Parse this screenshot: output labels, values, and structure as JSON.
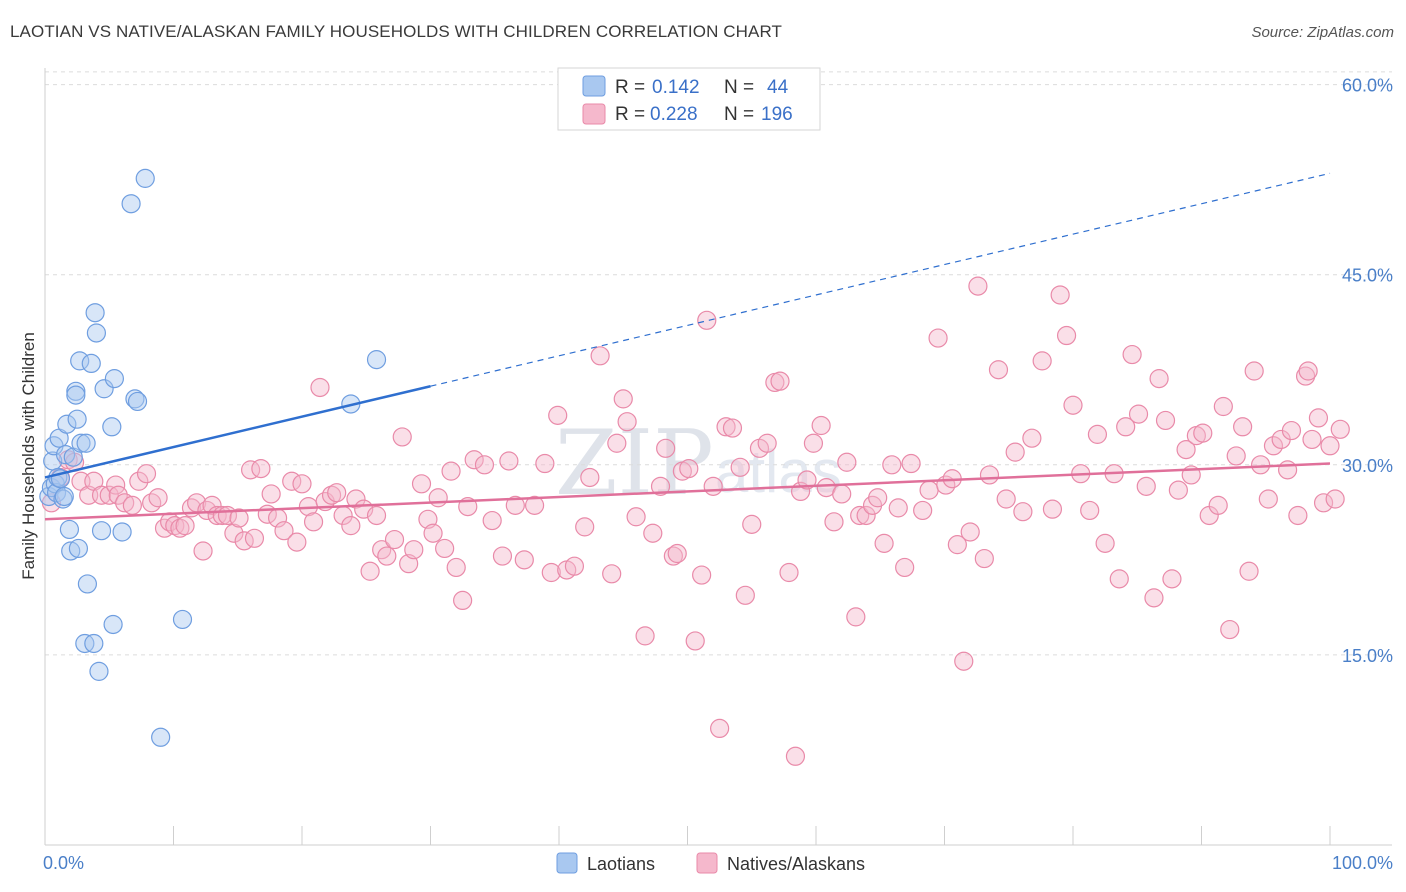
{
  "title": "LAOTIAN VS NATIVE/ALASKAN FAMILY HOUSEHOLDS WITH CHILDREN CORRELATION CHART",
  "source": "Source: ZipAtlas.com",
  "watermark": {
    "main": "ZIP",
    "sub": "atlas"
  },
  "colors": {
    "blue_fill": "#a9c8f0",
    "blue_stroke": "#6f9ee0",
    "blue_line": "#2f6fcf",
    "pink_fill": "#f5b8cc",
    "pink_stroke": "#e98aa9",
    "pink_line": "#e0709a",
    "grid": "#dcdcdc",
    "axis_label": "#4a7fc8"
  },
  "legend": {
    "rows": [
      {
        "r_label": "R = ",
        "r_value": "0.142",
        "n_label": "N = ",
        "n_value": "44"
      },
      {
        "r_label": "R = ",
        "r_value": "0.228",
        "n_label": "N = ",
        "n_value": "196"
      }
    ]
  },
  "bottom_legend": [
    "Laotians",
    "Natives/Alaskans"
  ],
  "chart_data": {
    "type": "scatter",
    "xlabel": "",
    "ylabel": "Family Households with Children",
    "xlim": [
      0,
      100
    ],
    "ylim": [
      0,
      62
    ],
    "x_tick_labels": [
      "0.0%",
      "100.0%"
    ],
    "y_ticks": [
      15,
      30,
      45,
      60
    ],
    "y_tick_labels": [
      "15.0%",
      "30.0%",
      "45.0%",
      "60.0%"
    ],
    "grid": true,
    "series": [
      {
        "name": "Laotians",
        "R": 0.142,
        "N": 44,
        "trend": {
          "x0": 0,
          "y0": 29.0,
          "x1": 30,
          "y1": 36.2,
          "dashed_to_x": 100,
          "dashed_to_y": 53.0
        },
        "points": [
          [
            0.3,
            27.5
          ],
          [
            0.5,
            28.2
          ],
          [
            0.6,
            30.3
          ],
          [
            0.7,
            31.5
          ],
          [
            0.8,
            28.5
          ],
          [
            0.9,
            27.8
          ],
          [
            1.0,
            29.0
          ],
          [
            1.1,
            32.1
          ],
          [
            1.2,
            28.9
          ],
          [
            1.4,
            27.3
          ],
          [
            1.5,
            27.5
          ],
          [
            1.6,
            30.8
          ],
          [
            1.7,
            33.2
          ],
          [
            1.9,
            24.9
          ],
          [
            2.0,
            23.2
          ],
          [
            2.2,
            30.6
          ],
          [
            2.4,
            35.8
          ],
          [
            2.4,
            35.5
          ],
          [
            2.5,
            33.6
          ],
          [
            2.6,
            23.4
          ],
          [
            2.7,
            38.2
          ],
          [
            2.8,
            31.7
          ],
          [
            3.1,
            15.9
          ],
          [
            3.2,
            31.7
          ],
          [
            3.3,
            20.6
          ],
          [
            3.6,
            38.0
          ],
          [
            3.8,
            15.9
          ],
          [
            3.9,
            42.0
          ],
          [
            4.0,
            40.4
          ],
          [
            4.2,
            13.7
          ],
          [
            4.4,
            24.8
          ],
          [
            4.6,
            36.0
          ],
          [
            5.2,
            33.0
          ],
          [
            5.3,
            17.4
          ],
          [
            5.4,
            36.8
          ],
          [
            6.0,
            24.7
          ],
          [
            6.7,
            50.6
          ],
          [
            7.0,
            35.2
          ],
          [
            7.2,
            35.0
          ],
          [
            7.8,
            52.6
          ],
          [
            9.0,
            8.5
          ],
          [
            10.7,
            17.8
          ],
          [
            23.8,
            34.8
          ],
          [
            25.8,
            38.3
          ]
        ]
      },
      {
        "name": "Natives/Alaskans",
        "R": 0.228,
        "N": 196,
        "trend": {
          "x0": 0,
          "y0": 25.7,
          "x1": 100,
          "y1": 30.1
        },
        "points": [
          [
            0.5,
            27.0
          ],
          [
            1.2,
            29.0
          ],
          [
            1.8,
            30.4
          ],
          [
            2.3,
            30.2
          ],
          [
            2.8,
            28.7
          ],
          [
            3.4,
            27.6
          ],
          [
            3.8,
            28.7
          ],
          [
            4.4,
            27.6
          ],
          [
            5.0,
            27.6
          ],
          [
            5.5,
            28.4
          ],
          [
            5.7,
            27.6
          ],
          [
            6.2,
            27.0
          ],
          [
            6.8,
            26.8
          ],
          [
            7.3,
            28.7
          ],
          [
            7.9,
            29.3
          ],
          [
            8.3,
            27.0
          ],
          [
            8.8,
            27.4
          ],
          [
            9.3,
            25.0
          ],
          [
            9.7,
            25.5
          ],
          [
            10.1,
            25.2
          ],
          [
            10.5,
            25.0
          ],
          [
            10.9,
            25.2
          ],
          [
            11.4,
            26.6
          ],
          [
            11.8,
            27.0
          ],
          [
            12.3,
            23.2
          ],
          [
            12.6,
            26.4
          ],
          [
            13.0,
            26.8
          ],
          [
            13.4,
            26.0
          ],
          [
            13.8,
            26.0
          ],
          [
            14.2,
            26.0
          ],
          [
            14.7,
            24.6
          ],
          [
            15.1,
            25.8
          ],
          [
            15.5,
            24.0
          ],
          [
            16.0,
            29.6
          ],
          [
            16.3,
            24.2
          ],
          [
            16.8,
            29.7
          ],
          [
            17.3,
            26.1
          ],
          [
            17.6,
            27.7
          ],
          [
            18.1,
            25.8
          ],
          [
            18.6,
            24.8
          ],
          [
            19.2,
            28.7
          ],
          [
            19.6,
            23.9
          ],
          [
            20.0,
            28.5
          ],
          [
            20.5,
            26.7
          ],
          [
            20.9,
            25.5
          ],
          [
            21.4,
            36.1
          ],
          [
            21.8,
            27.1
          ],
          [
            22.3,
            27.6
          ],
          [
            22.7,
            27.8
          ],
          [
            23.2,
            26.0
          ],
          [
            23.8,
            25.2
          ],
          [
            24.2,
            27.3
          ],
          [
            24.8,
            26.5
          ],
          [
            25.3,
            21.6
          ],
          [
            25.8,
            26.0
          ],
          [
            26.2,
            23.3
          ],
          [
            26.6,
            22.8
          ],
          [
            27.2,
            24.1
          ],
          [
            27.8,
            32.2
          ],
          [
            28.3,
            22.2
          ],
          [
            28.7,
            23.3
          ],
          [
            29.3,
            28.5
          ],
          [
            29.8,
            25.7
          ],
          [
            30.2,
            24.6
          ],
          [
            30.6,
            27.4
          ],
          [
            31.1,
            23.4
          ],
          [
            31.6,
            29.5
          ],
          [
            32.0,
            21.9
          ],
          [
            32.5,
            19.3
          ],
          [
            32.9,
            26.7
          ],
          [
            33.4,
            30.4
          ],
          [
            34.2,
            30.0
          ],
          [
            34.8,
            25.6
          ],
          [
            35.6,
            22.8
          ],
          [
            36.1,
            30.3
          ],
          [
            36.6,
            26.8
          ],
          [
            37.3,
            22.5
          ],
          [
            38.1,
            26.8
          ],
          [
            38.9,
            30.1
          ],
          [
            39.4,
            21.5
          ],
          [
            39.9,
            33.9
          ],
          [
            40.6,
            21.7
          ],
          [
            41.2,
            22.0
          ],
          [
            42.0,
            25.1
          ],
          [
            42.4,
            29.0
          ],
          [
            43.2,
            38.6
          ],
          [
            44.1,
            21.4
          ],
          [
            44.5,
            31.7
          ],
          [
            45.0,
            35.2
          ],
          [
            45.3,
            33.4
          ],
          [
            46.0,
            25.9
          ],
          [
            46.7,
            16.5
          ],
          [
            47.3,
            24.6
          ],
          [
            47.9,
            28.3
          ],
          [
            48.3,
            31.3
          ],
          [
            48.9,
            22.8
          ],
          [
            49.2,
            23.0
          ],
          [
            49.6,
            29.5
          ],
          [
            50.1,
            29.7
          ],
          [
            50.6,
            16.1
          ],
          [
            51.1,
            21.3
          ],
          [
            51.5,
            41.4
          ],
          [
            52.0,
            28.3
          ],
          [
            52.5,
            9.2
          ],
          [
            53.0,
            33.0
          ],
          [
            53.5,
            32.9
          ],
          [
            54.1,
            29.8
          ],
          [
            54.5,
            19.7
          ],
          [
            55.0,
            25.3
          ],
          [
            55.6,
            31.3
          ],
          [
            56.2,
            31.7
          ],
          [
            56.8,
            36.5
          ],
          [
            57.2,
            36.6
          ],
          [
            57.9,
            21.5
          ],
          [
            58.4,
            7.0
          ],
          [
            58.8,
            27.9
          ],
          [
            59.3,
            28.8
          ],
          [
            59.8,
            31.7
          ],
          [
            60.4,
            33.1
          ],
          [
            60.8,
            28.2
          ],
          [
            61.4,
            25.5
          ],
          [
            62.0,
            27.7
          ],
          [
            62.4,
            30.2
          ],
          [
            63.1,
            18.0
          ],
          [
            63.4,
            26.0
          ],
          [
            63.9,
            26.0
          ],
          [
            64.4,
            26.8
          ],
          [
            64.8,
            27.4
          ],
          [
            65.3,
            23.8
          ],
          [
            65.9,
            30.0
          ],
          [
            66.4,
            26.6
          ],
          [
            66.9,
            21.9
          ],
          [
            67.4,
            30.1
          ],
          [
            68.3,
            26.4
          ],
          [
            68.8,
            28.0
          ],
          [
            69.5,
            40.0
          ],
          [
            70.1,
            28.4
          ],
          [
            70.6,
            28.9
          ],
          [
            71.0,
            23.7
          ],
          [
            71.5,
            14.5
          ],
          [
            72.0,
            24.7
          ],
          [
            72.6,
            44.1
          ],
          [
            73.1,
            22.6
          ],
          [
            73.5,
            29.2
          ],
          [
            74.2,
            37.5
          ],
          [
            74.8,
            27.3
          ],
          [
            75.5,
            31.0
          ],
          [
            76.1,
            26.3
          ],
          [
            76.8,
            32.1
          ],
          [
            77.6,
            38.2
          ],
          [
            78.4,
            26.5
          ],
          [
            79.0,
            43.4
          ],
          [
            79.5,
            40.2
          ],
          [
            80.0,
            34.7
          ],
          [
            80.6,
            29.3
          ],
          [
            81.3,
            26.4
          ],
          [
            81.9,
            32.4
          ],
          [
            82.5,
            23.8
          ],
          [
            83.2,
            29.3
          ],
          [
            83.6,
            21.0
          ],
          [
            84.1,
            33.0
          ],
          [
            84.6,
            38.7
          ],
          [
            85.1,
            34.0
          ],
          [
            85.7,
            28.3
          ],
          [
            86.3,
            19.5
          ],
          [
            86.7,
            36.8
          ],
          [
            87.2,
            33.5
          ],
          [
            87.7,
            21.0
          ],
          [
            88.2,
            28.0
          ],
          [
            88.8,
            31.2
          ],
          [
            89.2,
            29.2
          ],
          [
            89.6,
            32.3
          ],
          [
            90.1,
            32.5
          ],
          [
            90.6,
            26.0
          ],
          [
            91.3,
            26.8
          ],
          [
            91.7,
            34.6
          ],
          [
            92.2,
            17.0
          ],
          [
            92.7,
            30.7
          ],
          [
            93.2,
            33.0
          ],
          [
            93.7,
            21.6
          ],
          [
            94.1,
            37.4
          ],
          [
            94.6,
            30.0
          ],
          [
            95.2,
            27.3
          ],
          [
            95.6,
            31.5
          ],
          [
            96.2,
            32.0
          ],
          [
            96.7,
            29.6
          ],
          [
            97.0,
            32.7
          ],
          [
            97.5,
            26.0
          ],
          [
            98.1,
            37.0
          ],
          [
            98.6,
            32.0
          ],
          [
            99.1,
            33.7
          ],
          [
            99.5,
            27.0
          ],
          [
            100.0,
            31.5
          ],
          [
            100.4,
            27.3
          ],
          [
            100.8,
            32.8
          ],
          [
            98.3,
            37.4
          ]
        ]
      }
    ]
  }
}
